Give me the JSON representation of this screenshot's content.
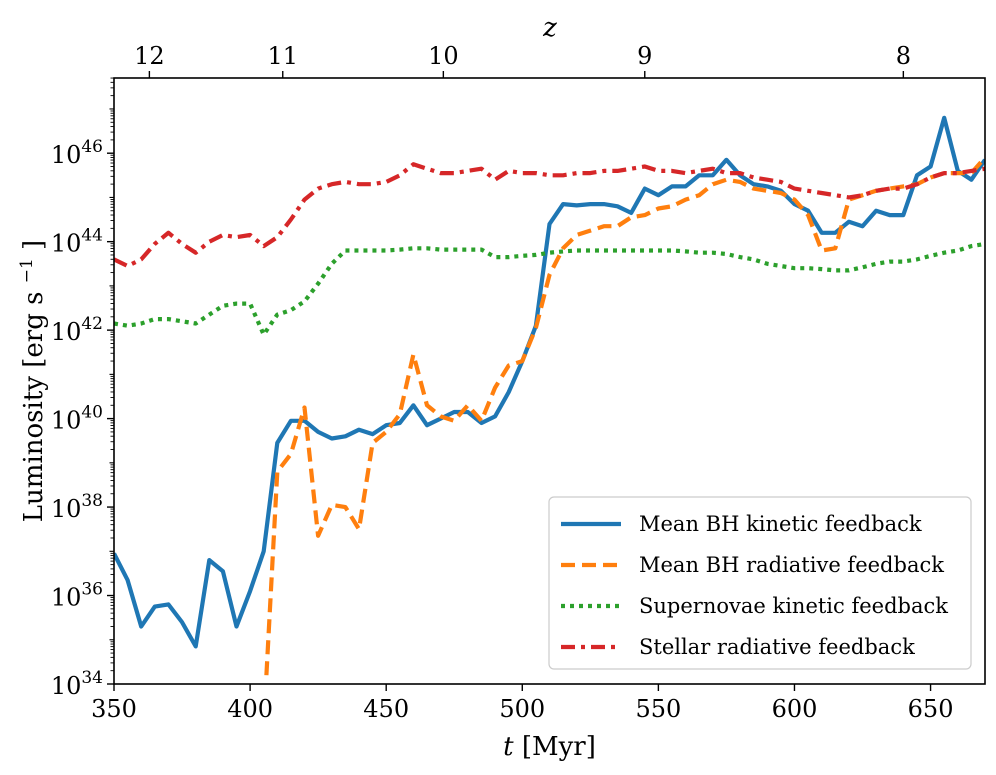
{
  "chart_data": {
    "type": "line",
    "xlabel_italic": "t",
    "xlabel_unit": "[Myr]",
    "ylabel_main": "Luminosity [erg s",
    "ylabel_sup": "−1",
    "ylabel_close": "]",
    "top_xlabel": "z",
    "xlim": [
      350,
      670
    ],
    "ylim_log10": [
      34,
      47.7
    ],
    "x_ticks": [
      {
        "value": 350,
        "label": "350"
      },
      {
        "value": 400,
        "label": "400"
      },
      {
        "value": 450,
        "label": "450"
      },
      {
        "value": 500,
        "label": "500"
      },
      {
        "value": 550,
        "label": "550"
      },
      {
        "value": 600,
        "label": "600"
      },
      {
        "value": 650,
        "label": "650"
      }
    ],
    "y_ticks": [
      {
        "exp": 34,
        "base": "10",
        "sup": "34"
      },
      {
        "exp": 36,
        "base": "10",
        "sup": "36"
      },
      {
        "exp": 38,
        "base": "10",
        "sup": "38"
      },
      {
        "exp": 40,
        "base": "10",
        "sup": "40"
      },
      {
        "exp": 42,
        "base": "10",
        "sup": "42"
      },
      {
        "exp": 44,
        "base": "10",
        "sup": "44"
      },
      {
        "exp": 46,
        "base": "10",
        "sup": "46"
      }
    ],
    "top_ticks": [
      {
        "t": 363,
        "label": "12"
      },
      {
        "t": 412,
        "label": "11"
      },
      {
        "t": 471,
        "label": "10"
      },
      {
        "t": 545,
        "label": "9"
      },
      {
        "t": 640,
        "label": "8"
      }
    ],
    "series": [
      {
        "name": "Mean BH kinetic feedback",
        "color": "#1f77b4",
        "dash": "solid",
        "points": [
          [
            350,
            36.95
          ],
          [
            355,
            36.35
          ],
          [
            360,
            35.3
          ],
          [
            365,
            35.75
          ],
          [
            370,
            35.8
          ],
          [
            375,
            35.4
          ],
          [
            380,
            34.85
          ],
          [
            385,
            36.8
          ],
          [
            390,
            36.55
          ],
          [
            395,
            35.3
          ],
          [
            400,
            36.1
          ],
          [
            405,
            37.0
          ],
          [
            410,
            39.45
          ],
          [
            415,
            39.95
          ],
          [
            420,
            39.95
          ],
          [
            425,
            39.7
          ],
          [
            430,
            39.55
          ],
          [
            435,
            39.6
          ],
          [
            440,
            39.75
          ],
          [
            445,
            39.65
          ],
          [
            450,
            39.85
          ],
          [
            455,
            39.9
          ],
          [
            460,
            40.3
          ],
          [
            465,
            39.85
          ],
          [
            470,
            40.0
          ],
          [
            475,
            40.15
          ],
          [
            480,
            40.15
          ],
          [
            485,
            39.9
          ],
          [
            490,
            40.05
          ],
          [
            495,
            40.6
          ],
          [
            500,
            41.3
          ],
          [
            505,
            42.1
          ],
          [
            510,
            44.4
          ],
          [
            515,
            44.85
          ],
          [
            520,
            44.82
          ],
          [
            525,
            44.85
          ],
          [
            530,
            44.85
          ],
          [
            535,
            44.8
          ],
          [
            540,
            44.65
          ],
          [
            545,
            45.2
          ],
          [
            550,
            45.05
          ],
          [
            555,
            45.25
          ],
          [
            560,
            45.25
          ],
          [
            565,
            45.5
          ],
          [
            570,
            45.5
          ],
          [
            575,
            45.85
          ],
          [
            580,
            45.5
          ],
          [
            585,
            45.3
          ],
          [
            590,
            45.25
          ],
          [
            595,
            45.15
          ],
          [
            600,
            44.85
          ],
          [
            605,
            44.7
          ],
          [
            610,
            44.2
          ],
          [
            615,
            44.2
          ],
          [
            620,
            44.45
          ],
          [
            625,
            44.35
          ],
          [
            630,
            44.7
          ],
          [
            635,
            44.6
          ],
          [
            640,
            44.6
          ],
          [
            645,
            45.5
          ],
          [
            650,
            45.7
          ],
          [
            655,
            46.8
          ],
          [
            660,
            45.6
          ],
          [
            665,
            45.4
          ],
          [
            670,
            45.85
          ]
        ]
      },
      {
        "name": "Mean BH radiative feedback",
        "color": "#ff7f0e",
        "dash": "dashed",
        "points": [
          [
            406,
            34.2
          ],
          [
            410,
            38.8
          ],
          [
            415,
            39.2
          ],
          [
            420,
            40.25
          ],
          [
            425,
            37.35
          ],
          [
            430,
            38.05
          ],
          [
            435,
            38.0
          ],
          [
            440,
            37.5
          ],
          [
            445,
            39.45
          ],
          [
            450,
            39.7
          ],
          [
            455,
            40.1
          ],
          [
            460,
            41.45
          ],
          [
            465,
            40.3
          ],
          [
            470,
            40.05
          ],
          [
            475,
            39.95
          ],
          [
            480,
            40.3
          ],
          [
            485,
            39.95
          ],
          [
            490,
            40.7
          ],
          [
            495,
            41.2
          ],
          [
            500,
            41.3
          ],
          [
            505,
            42.05
          ],
          [
            510,
            43.25
          ],
          [
            515,
            43.85
          ],
          [
            520,
            44.15
          ],
          [
            525,
            44.25
          ],
          [
            530,
            44.35
          ],
          [
            535,
            44.35
          ],
          [
            540,
            44.55
          ],
          [
            545,
            44.6
          ],
          [
            550,
            44.75
          ],
          [
            555,
            44.8
          ],
          [
            560,
            44.95
          ],
          [
            565,
            45.05
          ],
          [
            570,
            45.3
          ],
          [
            575,
            45.4
          ],
          [
            580,
            45.35
          ],
          [
            585,
            45.2
          ],
          [
            590,
            45.15
          ],
          [
            595,
            45.1
          ],
          [
            600,
            44.95
          ],
          [
            605,
            44.6
          ],
          [
            610,
            43.8
          ],
          [
            615,
            43.85
          ],
          [
            620,
            44.95
          ],
          [
            625,
            45.05
          ],
          [
            630,
            45.15
          ],
          [
            635,
            45.2
          ],
          [
            640,
            45.25
          ],
          [
            645,
            45.3
          ],
          [
            650,
            45.45
          ],
          [
            655,
            45.55
          ],
          [
            660,
            45.55
          ],
          [
            665,
            45.55
          ],
          [
            670,
            45.9
          ]
        ]
      },
      {
        "name": "Supernovae kinetic feedback",
        "color": "#2ca02c",
        "dash": "dotted",
        "points": [
          [
            350,
            42.15
          ],
          [
            355,
            42.1
          ],
          [
            360,
            42.15
          ],
          [
            365,
            42.25
          ],
          [
            370,
            42.25
          ],
          [
            375,
            42.2
          ],
          [
            380,
            42.15
          ],
          [
            385,
            42.35
          ],
          [
            390,
            42.55
          ],
          [
            395,
            42.6
          ],
          [
            400,
            42.6
          ],
          [
            405,
            41.9
          ],
          [
            410,
            42.35
          ],
          [
            415,
            42.45
          ],
          [
            420,
            42.65
          ],
          [
            425,
            43.05
          ],
          [
            430,
            43.5
          ],
          [
            435,
            43.8
          ],
          [
            440,
            43.8
          ],
          [
            445,
            43.8
          ],
          [
            450,
            43.8
          ],
          [
            455,
            43.82
          ],
          [
            460,
            43.85
          ],
          [
            465,
            43.85
          ],
          [
            470,
            43.82
          ],
          [
            475,
            43.82
          ],
          [
            480,
            43.82
          ],
          [
            485,
            43.82
          ],
          [
            490,
            43.65
          ],
          [
            495,
            43.65
          ],
          [
            500,
            43.68
          ],
          [
            505,
            43.7
          ],
          [
            510,
            43.75
          ],
          [
            515,
            43.78
          ],
          [
            520,
            43.8
          ],
          [
            525,
            43.8
          ],
          [
            530,
            43.8
          ],
          [
            535,
            43.8
          ],
          [
            540,
            43.8
          ],
          [
            545,
            43.8
          ],
          [
            550,
            43.8
          ],
          [
            555,
            43.8
          ],
          [
            560,
            43.78
          ],
          [
            565,
            43.75
          ],
          [
            570,
            43.75
          ],
          [
            575,
            43.72
          ],
          [
            580,
            43.65
          ],
          [
            585,
            43.6
          ],
          [
            590,
            43.5
          ],
          [
            595,
            43.45
          ],
          [
            600,
            43.4
          ],
          [
            605,
            43.4
          ],
          [
            610,
            43.38
          ],
          [
            615,
            43.35
          ],
          [
            620,
            43.35
          ],
          [
            625,
            43.42
          ],
          [
            630,
            43.5
          ],
          [
            635,
            43.55
          ],
          [
            640,
            43.55
          ],
          [
            645,
            43.6
          ],
          [
            650,
            43.68
          ],
          [
            655,
            43.75
          ],
          [
            660,
            43.8
          ],
          [
            665,
            43.9
          ],
          [
            670,
            43.95
          ]
        ]
      },
      {
        "name": "Stellar radiative feedback",
        "color": "#d62728",
        "dash": "dashdot",
        "points": [
          [
            350,
            43.6
          ],
          [
            355,
            43.45
          ],
          [
            360,
            43.6
          ],
          [
            365,
            43.95
          ],
          [
            370,
            44.2
          ],
          [
            375,
            43.95
          ],
          [
            380,
            43.75
          ],
          [
            385,
            44.0
          ],
          [
            390,
            44.15
          ],
          [
            395,
            44.1
          ],
          [
            400,
            44.15
          ],
          [
            405,
            43.9
          ],
          [
            410,
            44.1
          ],
          [
            415,
            44.5
          ],
          [
            420,
            44.95
          ],
          [
            425,
            45.2
          ],
          [
            430,
            45.3
          ],
          [
            435,
            45.35
          ],
          [
            440,
            45.3
          ],
          [
            445,
            45.3
          ],
          [
            450,
            45.35
          ],
          [
            455,
            45.5
          ],
          [
            460,
            45.75
          ],
          [
            465,
            45.65
          ],
          [
            470,
            45.55
          ],
          [
            475,
            45.55
          ],
          [
            480,
            45.6
          ],
          [
            485,
            45.65
          ],
          [
            490,
            45.4
          ],
          [
            495,
            45.6
          ],
          [
            500,
            45.55
          ],
          [
            505,
            45.55
          ],
          [
            510,
            45.5
          ],
          [
            515,
            45.5
          ],
          [
            520,
            45.55
          ],
          [
            525,
            45.55
          ],
          [
            530,
            45.6
          ],
          [
            535,
            45.6
          ],
          [
            540,
            45.65
          ],
          [
            545,
            45.7
          ],
          [
            550,
            45.6
          ],
          [
            555,
            45.6
          ],
          [
            560,
            45.55
          ],
          [
            565,
            45.6
          ],
          [
            570,
            45.65
          ],
          [
            575,
            45.55
          ],
          [
            580,
            45.55
          ],
          [
            585,
            45.45
          ],
          [
            590,
            45.4
          ],
          [
            595,
            45.35
          ],
          [
            600,
            45.2
          ],
          [
            605,
            45.15
          ],
          [
            610,
            45.1
          ],
          [
            615,
            45.05
          ],
          [
            620,
            45.0
          ],
          [
            625,
            45.05
          ],
          [
            630,
            45.15
          ],
          [
            635,
            45.2
          ],
          [
            640,
            45.2
          ],
          [
            645,
            45.3
          ],
          [
            650,
            45.45
          ],
          [
            655,
            45.55
          ],
          [
            660,
            45.55
          ],
          [
            665,
            45.6
          ],
          [
            670,
            45.65
          ]
        ]
      }
    ]
  }
}
